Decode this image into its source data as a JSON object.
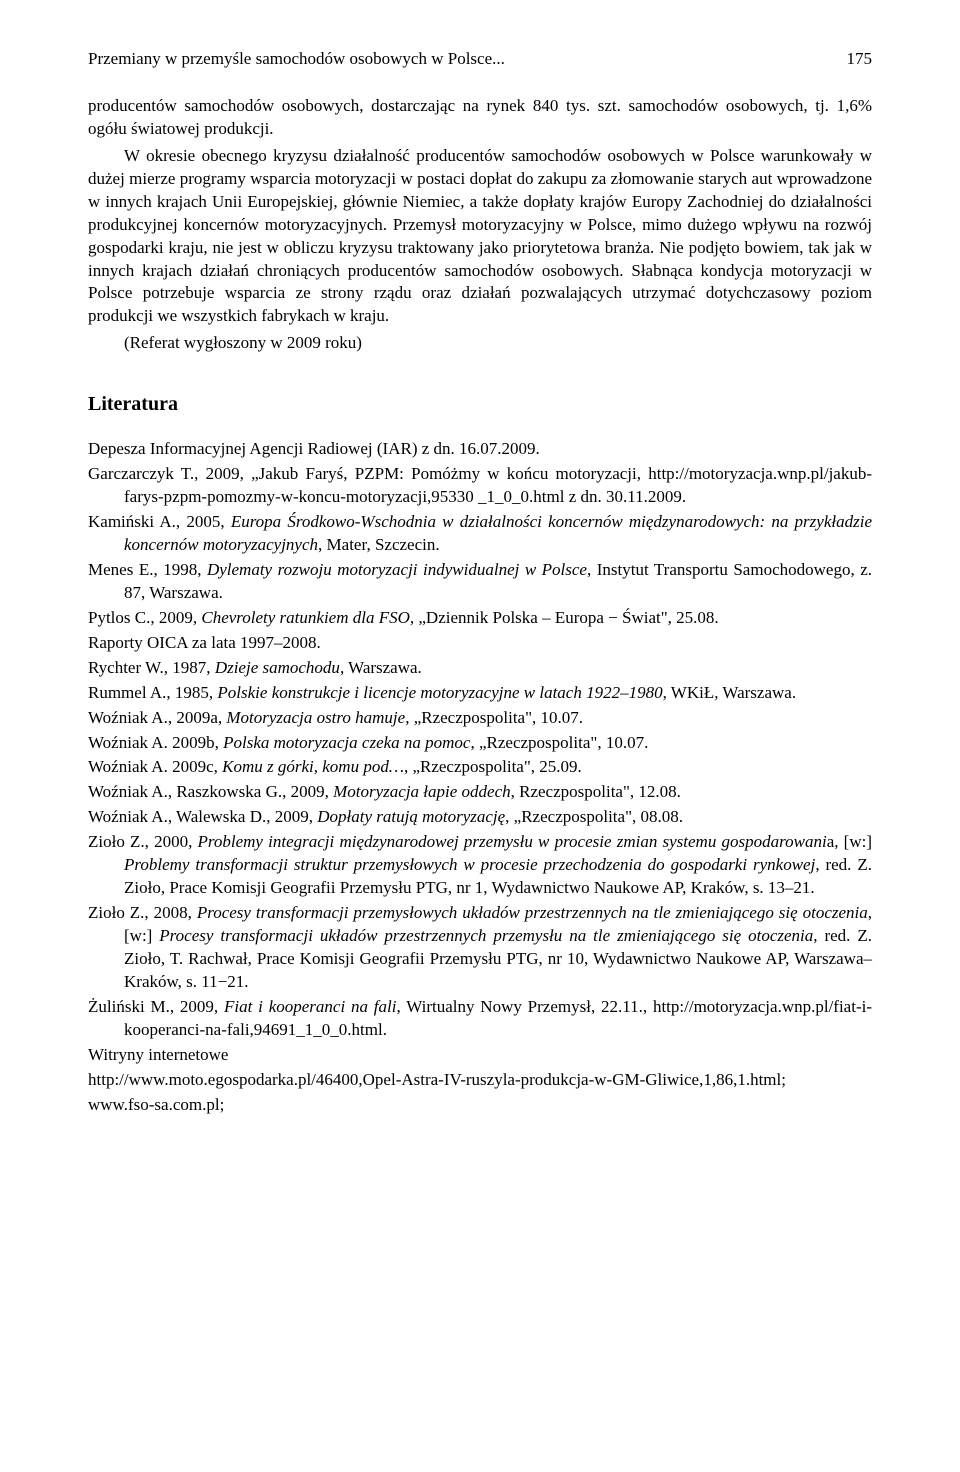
{
  "header": {
    "title": "Przemiany w przemyśle samochodów osobowych w Polsce...",
    "page": "175"
  },
  "paragraphs": {
    "p1": "producentów samochodów osobowych, dostarczając na rynek 840 tys. szt. samochodów osobowych, tj. 1,6% ogółu światowej produkcji.",
    "p2": "W okresie obecnego kryzysu działalność producentów samochodów osobowych w Polsce warunkowały w dużej mierze programy wsparcia motoryzacji w postaci dopłat do zakupu za złomowanie starych aut wprowadzone w innych krajach Unii Europejskiej, głównie Niemiec, a także dopłaty krajów Europy Zachodniej do działalności produkcyjnej koncernów motoryzacyjnych. Przemysł motoryzacyjny w Polsce, mimo dużego wpływu na rozwój gospodarki kraju, nie jest w obliczu kryzysu traktowany jako priorytetowa branża. Nie podjęto bowiem, tak jak w innych krajach działań chroniących producentów samochodów osobowych. Słabnąca kondycja motoryzacji w Polsce potrzebuje wsparcia ze strony rządu oraz działań pozwalających utrzymać dotychczasowy poziom produkcji we wszystkich fabrykach w kraju.",
    "p3": "(Referat wygłoszony w 2009 roku)"
  },
  "section": {
    "literature": "Literatura"
  },
  "refs": {
    "r1": "Depesza Informacyjnej Agencji Radiowej (IAR) z dn. 16.07.2009.",
    "r2a": "Garczarczyk T., 2009, „Jakub Faryś, PZPM: Pomóżmy w końcu motoryzacji, http://motoryzacja.wnp.pl/jakub-farys-pzpm-pomozmy-w-koncu-motoryzacji,95330 _1_0_0.html z dn. 30.11.2009.",
    "r3a": "Kamiński A., 2005, ",
    "r3b": "Europa Środkowo-Wschodnia w działalności koncernów międzynarodowych: na przykładzie koncernów motoryzacyjnych",
    "r3c": ", Mater, Szczecin.",
    "r4a": "Menes E., 1998, ",
    "r4b": "Dylematy rozwoju motoryzacji indywidualnej w Polsce",
    "r4c": ", Instytut Transportu Samochodowego, z. 87, Warszawa.",
    "r5a": "Pytlos C., 2009, ",
    "r5b": "Chevrolety ratunkiem dla FSO",
    "r5c": ", „Dziennik Polska – Europa − Świat\", 25.08.",
    "r6": "Raporty OICA za lata 1997–2008.",
    "r7a": "Rychter W., 1987, ",
    "r7b": "Dzieje samochodu",
    "r7c": ", Warszawa.",
    "r8a": "Rummel A., 1985, ",
    "r8b": "Polskie konstrukcje i licencje motoryzacyjne w latach 1922–1980",
    "r8c": ", WKiŁ, Warszawa.",
    "r9a": "Woźniak A., 2009a, ",
    "r9b": "Motoryzacja ostro hamuje",
    "r9c": ", „Rzeczpospolita\", 10.07.",
    "r10a": "Woźniak A. 2009b, ",
    "r10b": "Polska motoryzacja czeka na pomoc",
    "r10c": ", „Rzeczpospolita\", 10.07.",
    "r11a": "Woźniak A. 2009c, ",
    "r11b": "Komu z górki, komu pod…",
    "r11c": ", „Rzeczpospolita\", 25.09.",
    "r12a": "Woźniak A., Raszkowska G., 2009, ",
    "r12b": "Motoryzacja łapie oddech",
    "r12c": ", Rzeczpospolita\", 12.08.",
    "r13a": "Woźniak A., Walewska D., 2009, ",
    "r13b": "Dopłaty ratują motoryzację",
    "r13c": ", „Rzeczpospolita\", 08.08.",
    "r14a": "Zioło Z., 2000, ",
    "r14b": "Problemy integracji międzynarodowej przemysłu w procesie zmian systemu gospodarowani",
    "r14c": "a, [w:] ",
    "r14d": "Problemy transformacji struktur przemysłowych w procesie przechodzenia do gospodarki rynkowej",
    "r14e": ", red. Z. Zioło, Prace Komisji Geografii Przemysłu PTG, nr 1, Wydawnictwo Naukowe AP, Kraków, s. 13–21.",
    "r15a": "Zioło Z., 2008, ",
    "r15b": "Procesy transformacji przemysłowych układów przestrzennych na tle zmieniającego się otoczenia",
    "r15c": ", [w:] ",
    "r15d": "Procesy transformacji układów przestrzennych przemysłu na tle zmieniającego się otoczenia",
    "r15e": ", red. Z. Zioło, T. Rachwał, Prace Komisji Geografii Przemysłu PTG, nr 10, Wydawnictwo Naukowe AP, Warszawa–Kraków, s. 11−21.",
    "r16a": "Żuliński M., 2009, ",
    "r16b": "Fiat i kooperanci na fali",
    "r16c": ", Wirtualny Nowy Przemysł, 22.11., http://motoryzacja.wnp.pl/fiat-i-kooperanci-na-fali,94691_1_0_0.html.",
    "r17": "Witryny internetowe",
    "r18": "http://www.moto.egospodarka.pl/46400,Opel-Astra-IV-ruszyla-produkcja-w-GM-Gliwice,1,86,1.html;",
    "r19": "www.fso-sa.com.pl;"
  }
}
